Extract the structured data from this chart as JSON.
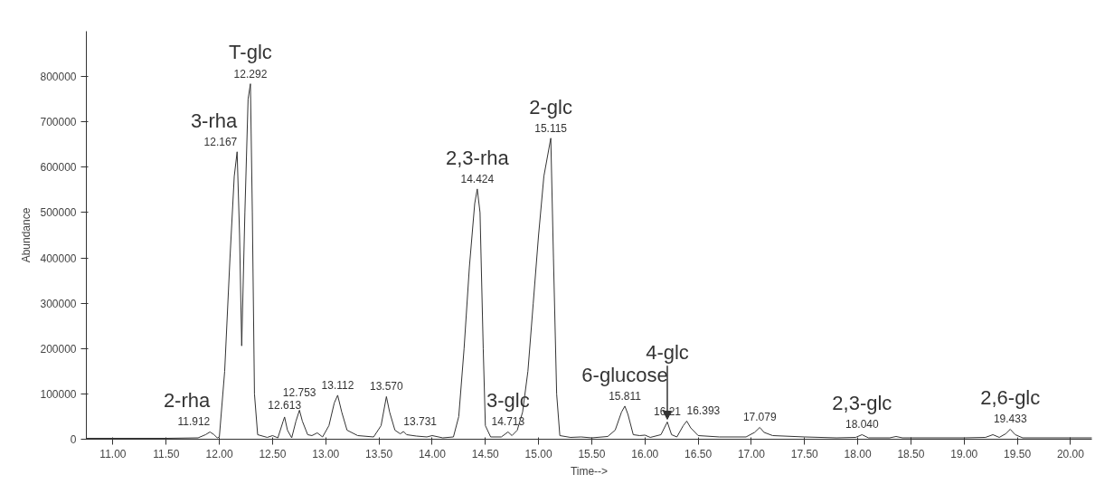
{
  "chart_data": {
    "type": "line",
    "xlabel": "Time-->",
    "ylabel": "Abundance",
    "x": [
      10.75,
      11.0,
      11.5,
      11.8,
      11.87,
      11.912,
      11.95,
      11.98,
      12.0,
      12.05,
      12.1,
      12.14,
      12.167,
      12.19,
      12.21,
      12.24,
      12.27,
      12.292,
      12.31,
      12.33,
      12.36,
      12.45,
      12.5,
      12.55,
      12.6,
      12.613,
      12.64,
      12.68,
      12.72,
      12.753,
      12.78,
      12.83,
      12.87,
      12.92,
      12.97,
      13.03,
      13.08,
      13.112,
      13.15,
      13.2,
      13.3,
      13.45,
      13.52,
      13.57,
      13.6,
      13.65,
      13.7,
      13.731,
      13.76,
      13.85,
      13.95,
      14.0,
      14.1,
      14.2,
      14.25,
      14.3,
      14.35,
      14.4,
      14.424,
      14.45,
      14.48,
      14.5,
      14.55,
      14.65,
      14.713,
      14.75,
      14.8,
      14.85,
      14.9,
      14.95,
      15.0,
      15.05,
      15.115,
      15.14,
      15.17,
      15.2,
      15.3,
      15.4,
      15.5,
      15.65,
      15.72,
      15.78,
      15.811,
      15.84,
      15.89,
      15.95,
      16.0,
      16.05,
      16.15,
      16.21,
      16.25,
      16.3,
      16.36,
      16.393,
      16.43,
      16.5,
      16.7,
      16.95,
      17.03,
      17.079,
      17.12,
      17.2,
      17.5,
      17.8,
      17.98,
      18.04,
      18.1,
      18.3,
      18.36,
      18.42,
      19.0,
      19.2,
      19.27,
      19.33,
      19.39,
      19.433,
      19.48,
      19.55,
      20.2
    ],
    "values": [
      2000,
      2000,
      2000,
      3000,
      10000,
      16000,
      10000,
      3000,
      5000,
      150000,
      400000,
      580000,
      634000,
      450000,
      206000,
      500000,
      750000,
      784000,
      500000,
      100000,
      10000,
      4000,
      8000,
      3000,
      40000,
      49000,
      20000,
      3000,
      40000,
      64000,
      40000,
      10000,
      8000,
      14000,
      5000,
      30000,
      80000,
      97000,
      60000,
      20000,
      8000,
      5000,
      30000,
      94000,
      60000,
      20000,
      12000,
      17000,
      10000,
      7000,
      5000,
      8000,
      3000,
      5000,
      50000,
      200000,
      380000,
      520000,
      552000,
      500000,
      200000,
      30000,
      5000,
      5000,
      16000,
      8000,
      20000,
      60000,
      150000,
      300000,
      450000,
      580000,
      664000,
      400000,
      100000,
      8000,
      4000,
      5000,
      3000,
      6000,
      20000,
      60000,
      73000,
      55000,
      10000,
      8000,
      9000,
      4000,
      10000,
      38000,
      10000,
      5000,
      30000,
      40000,
      25000,
      8000,
      5000,
      5000,
      15000,
      26000,
      15000,
      8000,
      5000,
      3000,
      4000,
      10000,
      3000,
      3000,
      6000,
      3000,
      3000,
      4000,
      10000,
      4000,
      12000,
      22000,
      10000,
      3000,
      3000
    ],
    "color": "#333333",
    "marker": "none",
    "line_style": "solid",
    "grid": false,
    "xlim": [
      10.75,
      20.2
    ],
    "ylim": [
      0,
      900000
    ],
    "xticks": [
      {
        "value": 11,
        "label": "11.00"
      },
      {
        "value": 11.5,
        "label": "11.50"
      },
      {
        "value": 12,
        "label": "12.00"
      },
      {
        "value": 12.5,
        "label": "12.50"
      },
      {
        "value": 13,
        "label": "13.00"
      },
      {
        "value": 13.5,
        "label": "13.50"
      },
      {
        "value": 14,
        "label": "14.00"
      },
      {
        "value": 14.5,
        "label": "14.50"
      },
      {
        "value": 15,
        "label": "15.00"
      },
      {
        "value": 15.5,
        "label": "15.50"
      },
      {
        "value": 16,
        "label": "16.00"
      },
      {
        "value": 16.5,
        "label": "16.50"
      },
      {
        "value": 17,
        "label": "17.00"
      },
      {
        "value": 17.5,
        "label": "17.50"
      },
      {
        "value": 18,
        "label": "18.00"
      },
      {
        "value": 18.5,
        "label": "18.50"
      },
      {
        "value": 19,
        "label": "19.00"
      },
      {
        "value": 19.5,
        "label": "19.50"
      },
      {
        "value": 20,
        "label": "20.00"
      }
    ],
    "yticks": [
      0,
      100000,
      200000,
      300000,
      400000,
      500000,
      600000,
      700000,
      800000
    ],
    "annotations": [
      {
        "text": "11.912",
        "x": 11.912,
        "y": 16000
      },
      {
        "text": "2-rha",
        "x": 11.912,
        "y": 16000
      },
      {
        "text": "12.167",
        "x": 12.167,
        "y": 634000
      },
      {
        "text": "3-rha",
        "x": 12.167,
        "y": 634000
      },
      {
        "text": "12.292",
        "x": 12.292,
        "y": 784000
      },
      {
        "text": "T-glc",
        "x": 12.292,
        "y": 784000
      },
      {
        "text": "12.613",
        "x": 12.613,
        "y": 49000
      },
      {
        "text": "12.753",
        "x": 12.753,
        "y": 64000
      },
      {
        "text": "13.112",
        "x": 13.112,
        "y": 97000
      },
      {
        "text": "13.570",
        "x": 13.57,
        "y": 94000
      },
      {
        "text": "13.731",
        "x": 13.731,
        "y": 17000
      },
      {
        "text": "14.424",
        "x": 14.424,
        "y": 552000
      },
      {
        "text": "2,3-rha",
        "x": 14.424,
        "y": 552000
      },
      {
        "text": "14.713",
        "x": 14.713,
        "y": 16000
      },
      {
        "text": "3-glc",
        "x": 14.713,
        "y": 16000
      },
      {
        "text": "15.115",
        "x": 15.115,
        "y": 664000
      },
      {
        "text": "2-glc",
        "x": 15.115,
        "y": 664000
      },
      {
        "text": "15.811",
        "x": 15.811,
        "y": 73000
      },
      {
        "text": "6-glucose",
        "x": 15.811,
        "y": 73000
      },
      {
        "text": "16.21",
        "x": 16.21,
        "y": 38000
      },
      {
        "text": "4-glc",
        "x": 16.21,
        "y": 38000
      },
      {
        "text": "16.393",
        "x": 16.393,
        "y": 40000
      },
      {
        "text": "17.079",
        "x": 17.079,
        "y": 26000
      },
      {
        "text": "18.040",
        "x": 18.04,
        "y": 10000
      },
      {
        "text": "2,3-glc",
        "x": 18.04,
        "y": 10000
      },
      {
        "text": "19.433",
        "x": 19.433,
        "y": 22000
      },
      {
        "text": "2,6-glc",
        "x": 19.433,
        "y": 22000
      }
    ]
  }
}
